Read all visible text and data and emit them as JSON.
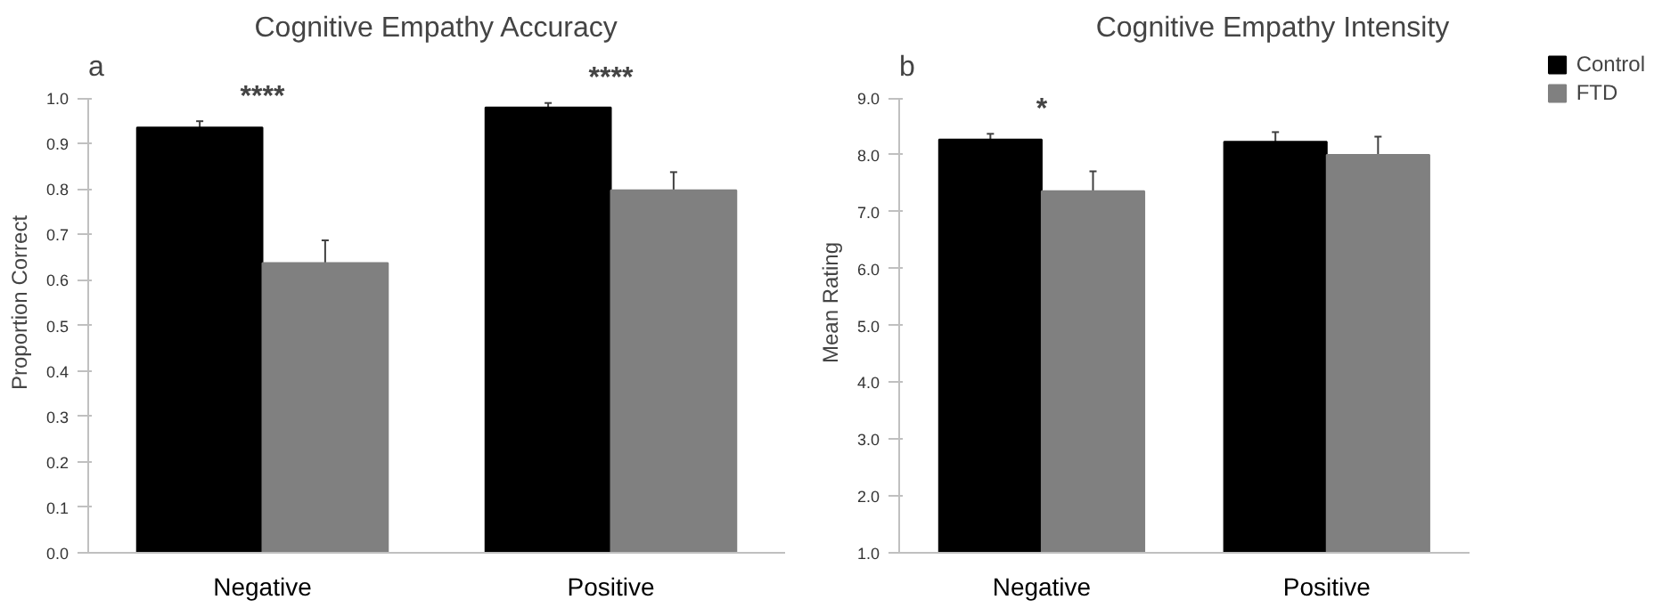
{
  "chart_data": [
    {
      "type": "bar",
      "title": "Cognitive Empathy Accuracy",
      "ylabel": "Proportion Correct",
      "categories": [
        "Negative",
        "Positive"
      ],
      "ylim": [
        0,
        1
      ],
      "yticks": [
        {
          "value": 0,
          "label": "0.0"
        },
        0.1,
        0.2,
        0.3,
        0.4,
        0.5,
        0.6,
        0.7,
        0.8,
        0.9,
        {
          "value": 1,
          "label": "1.0"
        }
      ],
      "grid": false,
      "legend": false,
      "series": [
        {
          "color": "#000000",
          "values": [
            0.935,
            0.979
          ],
          "errors": [
            0.014,
            0.01
          ]
        },
        {
          "color": "#808080",
          "values": [
            0.637,
            0.797
          ],
          "errors": [
            0.05,
            0.04
          ]
        }
      ],
      "annotations": [
        "a",
        "****",
        "****"
      ]
    },
    {
      "type": "bar",
      "title": "Cognitive Empathy Intensity",
      "ylabel": "Mean Rating",
      "categories": [
        "Negative",
        "Positive"
      ],
      "ylim": [
        1,
        9
      ],
      "yticks": [
        {
          "value": 1,
          "label": "1.0"
        },
        {
          "value": 2,
          "label": "2.0"
        },
        {
          "value": 3,
          "label": "3.0"
        },
        {
          "value": 4,
          "label": "4.0"
        },
        {
          "value": 5,
          "label": "5.0"
        },
        {
          "value": 6,
          "label": "6.0"
        },
        {
          "value": 7,
          "label": "7.0"
        },
        {
          "value": 8,
          "label": "8.0"
        },
        {
          "value": 9,
          "label": "9.0"
        }
      ],
      "grid": false,
      "legend": "top right",
      "series": [
        {
          "name": "Control",
          "color": "#000000",
          "values": [
            8.27,
            8.23
          ],
          "errors": [
            0.1,
            0.17
          ]
        },
        {
          "name": "FTD",
          "color": "#808080",
          "values": [
            7.36,
            8.0
          ],
          "errors": [
            0.35,
            0.32
          ]
        }
      ],
      "annotations": [
        "b",
        "*"
      ]
    }
  ]
}
